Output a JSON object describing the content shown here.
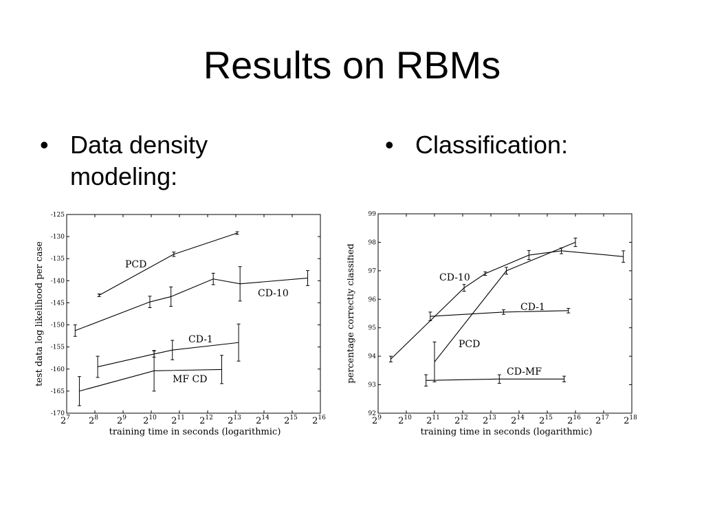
{
  "slide": {
    "title": "Results on RBMs",
    "bullets": [
      {
        "symbol": "•",
        "text": "Data density modeling:"
      },
      {
        "symbol": "•",
        "text": "Classification:"
      }
    ]
  },
  "chart_data": [
    {
      "type": "line",
      "xlabel": "training time in seconds (logarithmic)",
      "ylabel": "test data log likelihood per case",
      "x_scale": "log2",
      "x_base": "2",
      "xlim_exp": [
        7,
        16
      ],
      "xtick_exponents": [
        7,
        8,
        9,
        10,
        11,
        12,
        13,
        14,
        15,
        16
      ],
      "ylim": [
        -170,
        -125
      ],
      "yticks": [
        -125,
        -130,
        -135,
        -140,
        -145,
        -150,
        -155,
        -160,
        -165,
        -170
      ],
      "error_bars": true,
      "grid": false,
      "series": [
        {
          "name": "PCD",
          "x_exp": [
            8.15,
            10.8,
            13.05
          ],
          "y": [
            -143.3,
            -134.0,
            -129.2
          ],
          "err": [
            0.3,
            0.5,
            0.3
          ]
        },
        {
          "name": "CD-10",
          "x_exp": [
            7.3,
            9.95,
            10.7,
            12.2,
            13.15,
            15.55
          ],
          "y": [
            -151.3,
            -144.8,
            -143.6,
            -139.6,
            -140.7,
            -139.4
          ],
          "err": [
            1.3,
            1.3,
            2.2,
            1.3,
            3.9,
            1.7
          ]
        },
        {
          "name": "CD-1",
          "x_exp": [
            8.1,
            10.1,
            10.75,
            13.1
          ],
          "y": [
            -159.5,
            -156.6,
            -155.7,
            -154.0
          ],
          "err": [
            2.4,
            0.7,
            2.2,
            4.2
          ]
        },
        {
          "name": "MF CD",
          "x_exp": [
            7.45,
            10.1,
            12.5
          ],
          "y": [
            -165.0,
            -160.4,
            -160.1
          ],
          "err": [
            3.3,
            4.6,
            3.2
          ]
        }
      ]
    },
    {
      "type": "line",
      "xlabel": "training time in seconds (logarithmic)",
      "ylabel": "percentage correctly classified",
      "x_scale": "log2",
      "x_base": "2",
      "xlim_exp": [
        9,
        18
      ],
      "xtick_exponents": [
        9,
        10,
        11,
        12,
        13,
        14,
        15,
        16,
        17,
        18
      ],
      "ylim": [
        92,
        99
      ],
      "yticks": [
        92,
        93,
        94,
        95,
        96,
        97,
        98,
        99
      ],
      "error_bars": true,
      "grid": false,
      "series": [
        {
          "name": "CD-10",
          "x_exp": [
            9.45,
            12.05,
            12.8,
            14.35,
            15.5,
            17.7
          ],
          "y": [
            93.9,
            96.4,
            96.9,
            97.55,
            97.7,
            97.5
          ],
          "err": [
            0.1,
            0.12,
            0.06,
            0.16,
            0.1,
            0.2
          ]
        },
        {
          "name": "CD-1",
          "x_exp": [
            10.85,
            13.45,
            15.75
          ],
          "y": [
            95.4,
            95.55,
            95.6
          ],
          "err": [
            0.15,
            0.08,
            0.08
          ]
        },
        {
          "name": "PCD",
          "x_exp": [
            11.0,
            13.55,
            16.0
          ],
          "y": [
            93.8,
            97.0,
            98.0
          ],
          "err": [
            0.7,
            0.12,
            0.15
          ]
        },
        {
          "name": "CD-MF",
          "x_exp": [
            10.7,
            13.3,
            15.6
          ],
          "y": [
            93.15,
            93.2,
            93.2
          ],
          "err": [
            0.2,
            0.15,
            0.1
          ]
        }
      ]
    }
  ]
}
